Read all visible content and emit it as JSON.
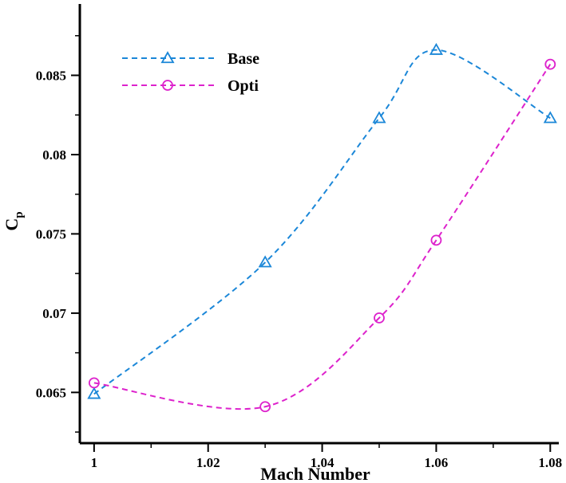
{
  "chart_data": {
    "type": "line",
    "title": "",
    "xlabel": "Mach Number",
    "ylabel_main": "C",
    "ylabel_sub": "p",
    "xlim": [
      0.9975,
      1.0815
    ],
    "ylim": [
      0.0618,
      0.0895
    ],
    "xticks": [
      1,
      1.02,
      1.04,
      1.06,
      1.08
    ],
    "xtick_labels": [
      "1",
      "1.02",
      "1.04",
      "1.06",
      "1.08"
    ],
    "yticks": [
      0.065,
      0.07,
      0.075,
      0.08,
      0.085
    ],
    "ytick_labels": [
      "0.065",
      "0.07",
      "0.075",
      "0.08",
      "0.085"
    ],
    "legend_position": "top-left",
    "grid": false,
    "series": [
      {
        "name": "Base",
        "color": "#1b87d8",
        "marker": "triangle",
        "line_style": "dashed",
        "x": [
          1,
          1.03,
          1.05,
          1.06,
          1.08
        ],
        "y": [
          0.0649,
          0.0732,
          0.0823,
          0.0866,
          0.0823
        ]
      },
      {
        "name": "Opti",
        "color": "#dd22cc",
        "marker": "circle",
        "line_style": "dashed",
        "x": [
          1,
          1.03,
          1.05,
          1.06,
          1.08
        ],
        "y": [
          0.0656,
          0.0641,
          0.0697,
          0.0746,
          0.0857
        ]
      }
    ]
  }
}
